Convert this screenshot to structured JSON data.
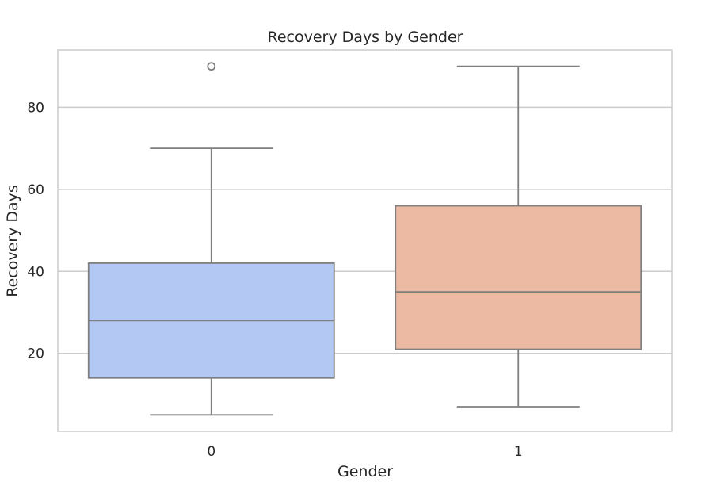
{
  "chart_data": {
    "type": "box",
    "title": "Recovery Days by Gender",
    "xlabel": "Gender",
    "ylabel": "Recovery Days",
    "categories": [
      "0",
      "1"
    ],
    "ylim": [
      1,
      94
    ],
    "yticks": [
      20,
      40,
      60,
      80
    ],
    "grid": true,
    "boxes": [
      {
        "category": "0",
        "color": "#b3c9f3",
        "whisker_low": 5,
        "q1": 14,
        "median": 28,
        "q3": 42,
        "whisker_high": 70,
        "outliers": [
          90
        ]
      },
      {
        "category": "1",
        "color": "#ecb9a3",
        "whisker_low": 7,
        "q1": 21,
        "median": 35,
        "q3": 56,
        "whisker_high": 90,
        "outliers": []
      }
    ]
  }
}
